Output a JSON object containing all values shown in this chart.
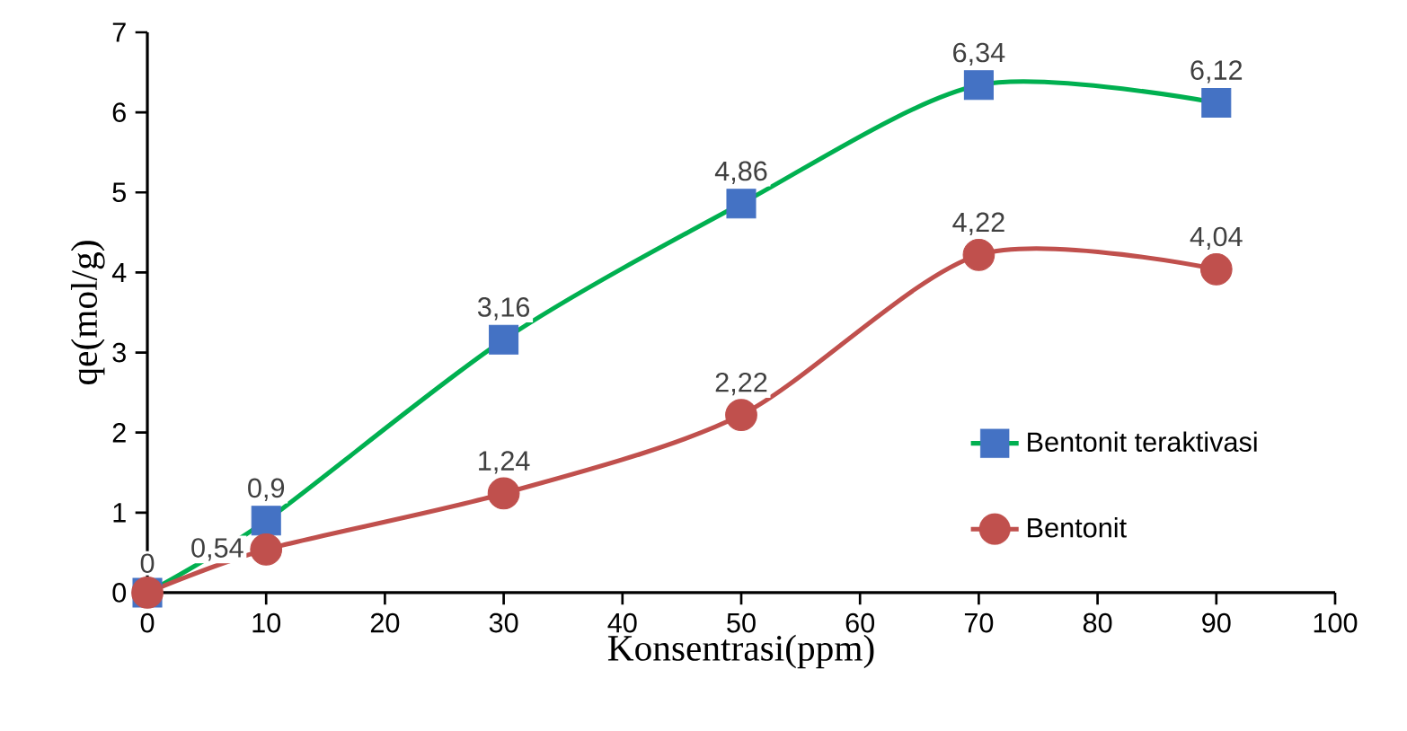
{
  "chart_data": {
    "type": "line",
    "xlabel": "Konsentrasi(ppm)",
    "ylabel": "qe(mol/g)",
    "x": [
      0,
      10,
      30,
      50,
      70,
      90
    ],
    "series": [
      {
        "name": "Bentonit teraktivasi",
        "color": "#00b050",
        "colors": [
          "#4472c4",
          "#4472c4",
          "#4472c4",
          "#4472c4",
          "#4472c4",
          "#4472c4"
        ],
        "marker": "square",
        "values": [
          0,
          0.9,
          3.16,
          4.86,
          6.34,
          6.12
        ],
        "value_labels": [
          "0",
          "0,9",
          "3,16",
          "4,86",
          "6,34",
          "6,12"
        ]
      },
      {
        "name": "Bentonit",
        "color": "#c0504d",
        "colors": [
          "#c0504d",
          "#c0504d",
          "#c0504d",
          "#c0504d",
          "#c0504d",
          "#c0504d"
        ],
        "marker": "circle",
        "values": [
          0,
          0.54,
          1.24,
          2.22,
          4.22,
          4.04
        ],
        "value_labels": [
          null,
          "0,54",
          "1,24",
          "2,22",
          "4,22",
          "4,04"
        ]
      }
    ],
    "xlim": [
      0,
      100
    ],
    "xticks": [
      0,
      10,
      20,
      30,
      40,
      50,
      60,
      70,
      80,
      90,
      100
    ],
    "ylim": [
      0,
      7
    ],
    "yticks": [
      0,
      1,
      2,
      3,
      4,
      5,
      6,
      7
    ],
    "grid": false,
    "legend": "right",
    "line_style": "solid"
  }
}
